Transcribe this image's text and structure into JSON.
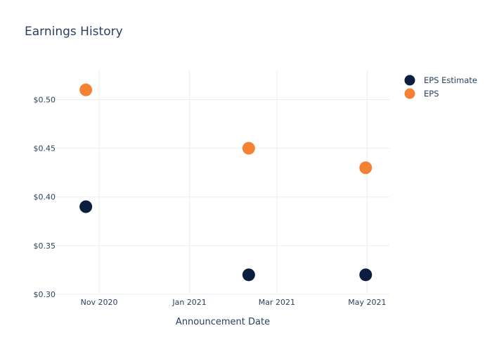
{
  "chart_data": {
    "type": "scatter",
    "title": "Earnings History",
    "xlabel": "Announcement Date",
    "ylabel": "",
    "x_ticks": [
      {
        "label": "Nov 2020",
        "date": "2020-11-01"
      },
      {
        "label": "Jan 2021",
        "date": "2021-01-01"
      },
      {
        "label": "Mar 2021",
        "date": "2021-03-01"
      },
      {
        "label": "May 2021",
        "date": "2021-05-01"
      }
    ],
    "y_ticks": [
      {
        "label": "$0.30",
        "value": 0.3
      },
      {
        "label": "$0.35",
        "value": 0.35
      },
      {
        "label": "$0.40",
        "value": 0.4
      },
      {
        "label": "$0.45",
        "value": 0.45
      },
      {
        "label": "$0.50",
        "value": 0.5
      }
    ],
    "xlim": [
      "2020-10-03",
      "2021-05-16"
    ],
    "ylim": [
      0.3,
      0.53
    ],
    "grid": true,
    "legend_position": "top-right",
    "series": [
      {
        "name": "EPS Estimate",
        "color": "#0b1e3f",
        "points": [
          {
            "x": "2020-10-23",
            "y": 0.39
          },
          {
            "x": "2021-02-10",
            "y": 0.32
          },
          {
            "x": "2021-04-30",
            "y": 0.32
          }
        ]
      },
      {
        "name": "EPS",
        "color": "#f58232",
        "points": [
          {
            "x": "2020-10-23",
            "y": 0.51
          },
          {
            "x": "2021-02-10",
            "y": 0.45
          },
          {
            "x": "2021-04-30",
            "y": 0.43
          }
        ]
      }
    ]
  }
}
